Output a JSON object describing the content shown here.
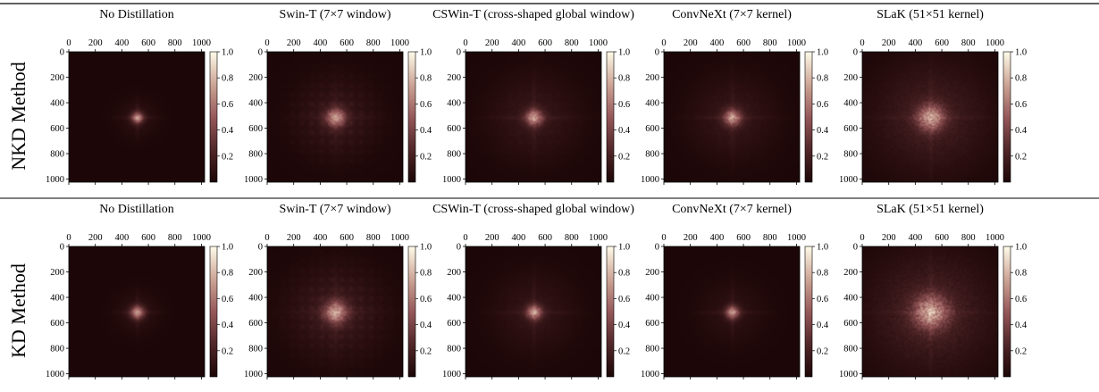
{
  "row_labels": [
    "NKD Method",
    "KD Method"
  ],
  "colorbar_ticks": [
    "0.2",
    "0.4",
    "0.6",
    "0.8",
    "1.0"
  ],
  "colors": {
    "background": "#ffffff",
    "map_low": "#1c0607",
    "map_high": "#fffbe9",
    "rule": "#000000"
  },
  "chart_data": [
    {
      "type": "heatmap",
      "title": "No Distillation",
      "row": "NKD Method",
      "xticks": [
        0,
        200,
        400,
        600,
        800,
        1000
      ],
      "yticks": [
        0,
        200,
        400,
        600,
        800,
        1000
      ],
      "xlim": [
        0,
        1024
      ],
      "ylim": [
        1024,
        0
      ],
      "colorbar": [
        0.0,
        1.0
      ],
      "peak": [
        512,
        512
      ],
      "core_spread": 30,
      "halo_spread": 100,
      "halo_strength": 0.05,
      "grid_texture": 0.0,
      "noise": 0.1
    },
    {
      "type": "heatmap",
      "title": "Swin-T (7×7 window)",
      "row": "NKD Method",
      "xticks": [
        0,
        200,
        400,
        600,
        800,
        1000
      ],
      "yticks": [
        0,
        200,
        400,
        600,
        800,
        1000
      ],
      "xlim": [
        0,
        1024
      ],
      "ylim": [
        1024,
        0
      ],
      "colorbar": [
        0.0,
        1.0
      ],
      "peak": [
        512,
        512
      ],
      "core_spread": 50,
      "halo_spread": 200,
      "halo_strength": 0.08,
      "grid_texture": 0.6,
      "noise": 0.15
    },
    {
      "type": "heatmap",
      "title": "CSWin-T (cross-shaped global window)",
      "row": "NKD Method",
      "xticks": [
        0,
        200,
        400,
        600,
        800,
        1000
      ],
      "yticks": [
        0,
        200,
        400,
        600,
        800,
        1000
      ],
      "xlim": [
        0,
        1024
      ],
      "ylim": [
        1024,
        0
      ],
      "colorbar": [
        0.0,
        1.0
      ],
      "peak": [
        512,
        512
      ],
      "core_spread": 45,
      "halo_spread": 220,
      "halo_strength": 0.08,
      "grid_texture": 0.15,
      "noise": 0.18
    },
    {
      "type": "heatmap",
      "title": "ConvNeXt (7×7 kernel)",
      "row": "NKD Method",
      "xticks": [
        0,
        200,
        400,
        600,
        800,
        1000
      ],
      "yticks": [
        0,
        200,
        400,
        600,
        800,
        1000
      ],
      "xlim": [
        0,
        1024
      ],
      "ylim": [
        1024,
        0
      ],
      "colorbar": [
        0.0,
        1.0
      ],
      "peak": [
        512,
        512
      ],
      "core_spread": 45,
      "halo_spread": 210,
      "halo_strength": 0.08,
      "grid_texture": 0.1,
      "noise": 0.18
    },
    {
      "type": "heatmap",
      "title": "SLaK (51×51 kernel)",
      "row": "NKD Method",
      "xticks": [
        0,
        200,
        400,
        600,
        800,
        1000
      ],
      "yticks": [
        0,
        200,
        400,
        600,
        800,
        1000
      ],
      "xlim": [
        0,
        1024
      ],
      "ylim": [
        1024,
        0
      ],
      "colorbar": [
        0.0,
        1.0
      ],
      "peak": [
        512,
        512
      ],
      "core_spread": 70,
      "halo_spread": 280,
      "halo_strength": 0.13,
      "grid_texture": 0.05,
      "noise": 0.22
    },
    {
      "type": "heatmap",
      "title": "No Distillation",
      "row": "KD Method",
      "xticks": [
        0,
        200,
        400,
        600,
        800,
        1000
      ],
      "yticks": [
        0,
        200,
        400,
        600,
        800,
        1000
      ],
      "xlim": [
        0,
        1024
      ],
      "ylim": [
        1024,
        0
      ],
      "colorbar": [
        0.0,
        1.0
      ],
      "peak": [
        512,
        512
      ],
      "core_spread": 35,
      "halo_spread": 110,
      "halo_strength": 0.05,
      "grid_texture": 0.0,
      "noise": 0.1
    },
    {
      "type": "heatmap",
      "title": "Swin-T (7×7 window)",
      "row": "KD Method",
      "xticks": [
        0,
        200,
        400,
        600,
        800,
        1000
      ],
      "yticks": [
        0,
        200,
        400,
        600,
        800,
        1000
      ],
      "xlim": [
        0,
        1024
      ],
      "ylim": [
        1024,
        0
      ],
      "colorbar": [
        0.0,
        1.0
      ],
      "peak": [
        512,
        512
      ],
      "core_spread": 60,
      "halo_spread": 230,
      "halo_strength": 0.1,
      "grid_texture": 0.6,
      "noise": 0.16
    },
    {
      "type": "heatmap",
      "title": "CSWin-T (cross-shaped global window)",
      "row": "KD Method",
      "xticks": [
        0,
        200,
        400,
        600,
        800,
        1000
      ],
      "yticks": [
        0,
        200,
        400,
        600,
        800,
        1000
      ],
      "xlim": [
        0,
        1024
      ],
      "ylim": [
        1024,
        0
      ],
      "colorbar": [
        0.0,
        1.0
      ],
      "peak": [
        512,
        512
      ],
      "core_spread": 40,
      "halo_spread": 200,
      "halo_strength": 0.07,
      "grid_texture": 0.1,
      "noise": 0.15
    },
    {
      "type": "heatmap",
      "title": "ConvNeXt (7×7 kernel)",
      "row": "KD Method",
      "xticks": [
        0,
        200,
        400,
        600,
        800,
        1000
      ],
      "yticks": [
        0,
        200,
        400,
        600,
        800,
        1000
      ],
      "xlim": [
        0,
        1024
      ],
      "ylim": [
        1024,
        0
      ],
      "colorbar": [
        0.0,
        1.0
      ],
      "peak": [
        512,
        512
      ],
      "core_spread": 35,
      "halo_spread": 160,
      "halo_strength": 0.05,
      "grid_texture": 0.05,
      "noise": 0.12
    },
    {
      "type": "heatmap",
      "title": "SLaK (51×51 kernel)",
      "row": "KD Method",
      "xticks": [
        0,
        200,
        400,
        600,
        800,
        1000
      ],
      "yticks": [
        0,
        200,
        400,
        600,
        800,
        1000
      ],
      "xlim": [
        0,
        1024
      ],
      "ylim": [
        1024,
        0
      ],
      "colorbar": [
        0.0,
        1.0
      ],
      "peak": [
        512,
        512
      ],
      "core_spread": 90,
      "halo_spread": 300,
      "halo_strength": 0.15,
      "grid_texture": 0.05,
      "noise": 0.25
    }
  ]
}
